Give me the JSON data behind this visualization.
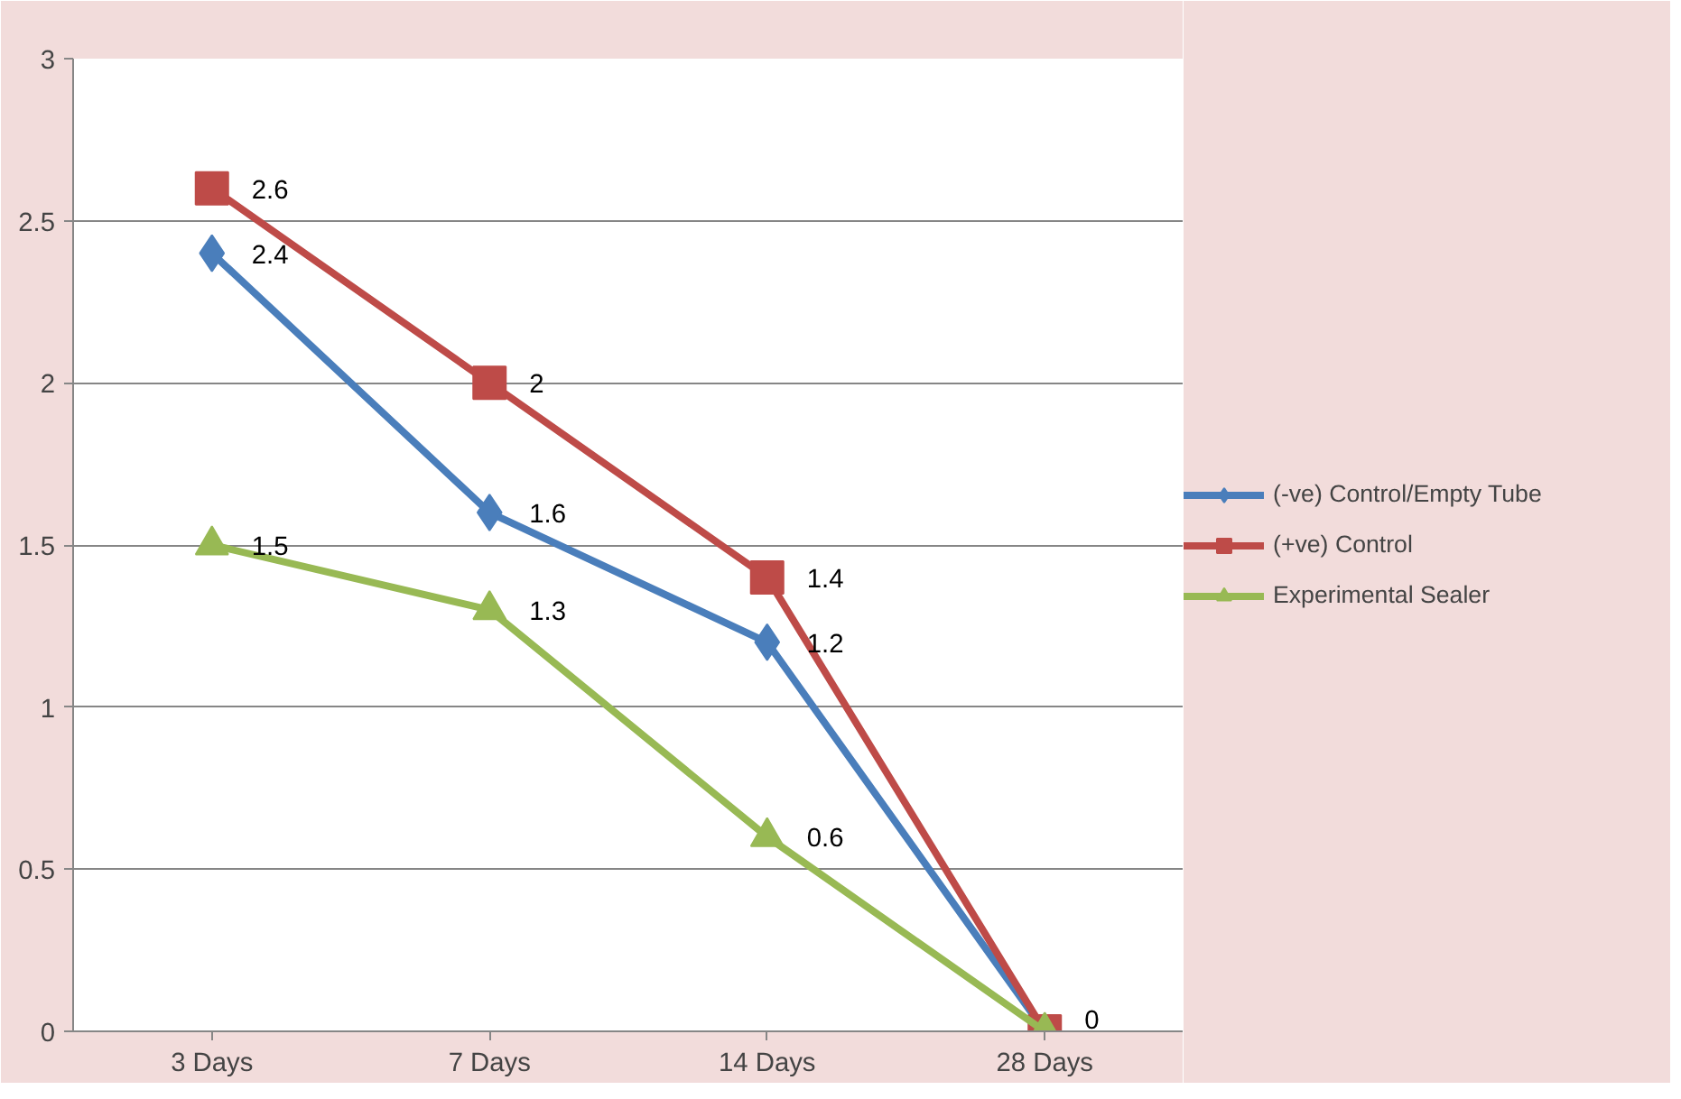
{
  "chart_data": {
    "type": "line",
    "categories": [
      "3 Days",
      "7 Days",
      "14 Days",
      "28 Days"
    ],
    "series": [
      {
        "name": "(-ve) Control/Empty Tube",
        "color": "#4a7ebb",
        "marker": "diamond",
        "values": [
          2.4,
          1.6,
          1.2,
          0
        ],
        "value_labels": [
          "2.4",
          "1.6",
          "1.2",
          null
        ]
      },
      {
        "name": "(+ve) Control",
        "color": "#be4b48",
        "marker": "square",
        "values": [
          2.6,
          2,
          1.4,
          0
        ],
        "value_labels": [
          "2.6",
          "2",
          "1.4",
          "0"
        ]
      },
      {
        "name": "Experimental Sealer",
        "color": "#98b954",
        "marker": "triangle",
        "values": [
          1.5,
          1.3,
          0.6,
          0
        ],
        "value_labels": [
          "1.5",
          "1.3",
          "0.6",
          null
        ]
      }
    ],
    "ylim": [
      0,
      3
    ],
    "yticks": [
      0,
      0.5,
      1,
      1.5,
      2,
      2.5,
      3
    ],
    "grid": "y",
    "legend": "right",
    "line_style": "solid"
  }
}
